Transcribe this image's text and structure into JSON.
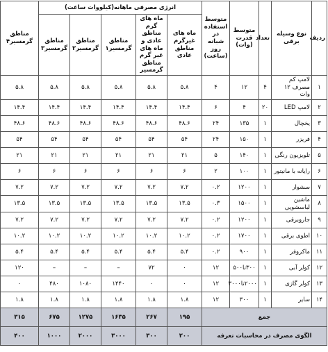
{
  "table": {
    "group_header": "انرژی مصرفی ماهانه(کیلووات ساعت)",
    "columns": [
      "ردیف",
      "نوع وسیله برقی",
      "تعداد",
      "متوسط قدرت (وات)",
      "متوسط استفاده در شبانه روز (ساعت)",
      "ماه های غیرگرم مناطق عادی",
      "ماه های گرم مناطق عادی و ماه های غیر گرم مناطق گرمسیر",
      "مناطق گرمسیر۱",
      "مناطق گرمسیر۲",
      "مناطق گرمسیر۳",
      "مناطق گرمسیر۴"
    ],
    "rows": [
      [
        "۱",
        "لامپ کم مصرف ۱۲ وات",
        "۴",
        "۱۲",
        "۴",
        "۵.۸",
        "۵.۸",
        "۵.۸",
        "۵.۸",
        "۵.۸",
        "۵.۸"
      ],
      [
        "۲",
        "لامپ LED",
        "۲۰",
        "۴",
        "۶",
        "۱۴.۴",
        "۱۴.۴",
        "۱۴.۴",
        "۱۴.۴",
        "۱۴.۴",
        "۱۴.۴"
      ],
      [
        "۳",
        "یخچال",
        "۱",
        "۱۳۵",
        "۲۴",
        "۴۸.۶",
        "۴۸.۶",
        "۴۸.۶",
        "۴۸.۶",
        "۴۸.۶",
        "۴۸.۶"
      ],
      [
        "۴",
        "فریزر",
        "۱",
        "۱۵۰",
        "۲۴",
        "۵۴",
        "۵۴",
        "۵۴",
        "۵۴",
        "۵۴",
        "۵۴"
      ],
      [
        "۵",
        "تلویزیون رنگی",
        "۱",
        "۱۴۰",
        "۵",
        "۲۱",
        "۲۱",
        "۲۱",
        "۲۱",
        "۲۱",
        "۲۱"
      ],
      [
        "۶",
        "رایانه با مانیتور",
        "۱",
        "۱۰۰",
        "۲",
        "۶",
        "۶",
        "۶",
        "۶",
        "۶",
        "۶"
      ],
      [
        "۷",
        "سشوار",
        "۱",
        "۱۲۰۰",
        "۰.۲",
        "۷.۲",
        "۷.۲",
        "۷.۲",
        "۷.۲",
        "۷.۲",
        "۷.۲"
      ],
      [
        "۸",
        "ماشین لباسشویی",
        "۱",
        "۱۵۰۰",
        "۰.۳",
        "۱۳.۵",
        "۱۳.۵",
        "۱۳.۵",
        "۱۳.۵",
        "۱۳.۵",
        "۱۳.۵"
      ],
      [
        "۹",
        "جاروبرقی",
        "۱",
        "۱۲۰۰",
        "۰.۲",
        "۷.۲",
        "۷.۲",
        "۷.۲",
        "۷.۲",
        "۷.۲",
        "۷.۲"
      ],
      [
        "۱۰",
        "اطوی برقی",
        "۱",
        "۱۷۰۰",
        "۰.۲",
        "۱۰.۲",
        "۱۰.۲",
        "۱۰.۲",
        "۱۰.۲",
        "۱۰.۲",
        "۱۰.۲"
      ],
      [
        "۱۱",
        "ماکروفر",
        "۱",
        "۹۰۰",
        "۰.۲",
        "۵.۴",
        "۵.۴",
        "۵.۴",
        "۵.۴",
        "۵.۴",
        "۵.۴"
      ],
      [
        "۱۲",
        "کولر آبی",
        "۱",
        "۳۰۰تا۵۰۰",
        "۱۲",
        "۰",
        "۷۲",
        "–",
        "–",
        "–",
        "۱۲۰"
      ],
      [
        "۱۳",
        "کولر گازی",
        "۱",
        "۲۰۰۰تا۳۰۰۰",
        "۱۲",
        "۰",
        "۰",
        "۱۴۴۰",
        "۱۰۸۰",
        "۴۸۰",
        "۰"
      ],
      [
        "۱۴",
        "سایر",
        "۱",
        "۳۰۰",
        "۱۲",
        "۱.۸",
        "۱.۸",
        "۱.۸",
        "۱.۸",
        "۱.۸",
        "۱.۸"
      ]
    ],
    "total": {
      "label": "جمع",
      "values": [
        "۱۹۵",
        "۲۶۷",
        "۱۶۳۵",
        "۱۲۷۵",
        "۶۷۵",
        "۳۱۵"
      ]
    },
    "pattern": {
      "label": "الگوی مصرف در محاسبات تعرفه",
      "values": [
        "۲۰۰",
        "۳۰۰",
        "۳۰۰۰",
        "۲۰۰۰",
        "۱۰۰۰",
        "۴۰۰"
      ]
    }
  }
}
